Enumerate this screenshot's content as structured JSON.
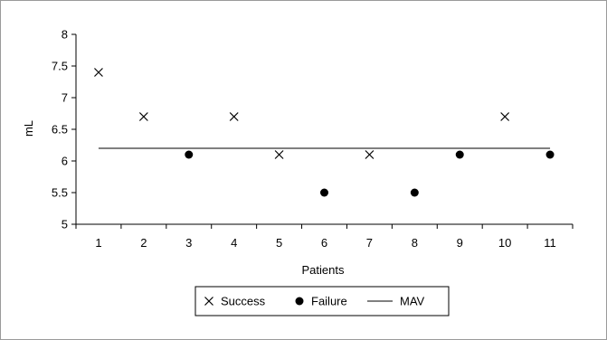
{
  "chart_data": {
    "type": "scatter",
    "title": "",
    "xlabel": "Patients",
    "ylabel": "mL",
    "categories": [
      "1",
      "2",
      "3",
      "4",
      "5",
      "6",
      "7",
      "8",
      "9",
      "10",
      "11"
    ],
    "ylim": [
      5,
      8
    ],
    "yticks": [
      "5",
      "5.5",
      "6",
      "6.5",
      "7",
      "7.5",
      "8"
    ],
    "grid": false,
    "legend_position": "bottom",
    "series": [
      {
        "name": "Success",
        "marker": "x",
        "points": [
          {
            "x": "1",
            "y": 7.4
          },
          {
            "x": "2",
            "y": 6.7
          },
          {
            "x": "4",
            "y": 6.7
          },
          {
            "x": "5",
            "y": 6.1
          },
          {
            "x": "7",
            "y": 6.1
          },
          {
            "x": "10",
            "y": 6.7
          }
        ]
      },
      {
        "name": "Failure",
        "marker": "dot",
        "points": [
          {
            "x": "3",
            "y": 6.1
          },
          {
            "x": "6",
            "y": 5.5
          },
          {
            "x": "8",
            "y": 5.5
          },
          {
            "x": "9",
            "y": 6.1
          },
          {
            "x": "11",
            "y": 6.1
          }
        ]
      },
      {
        "name": "MAV",
        "marker": "line",
        "value": 6.2
      }
    ]
  }
}
